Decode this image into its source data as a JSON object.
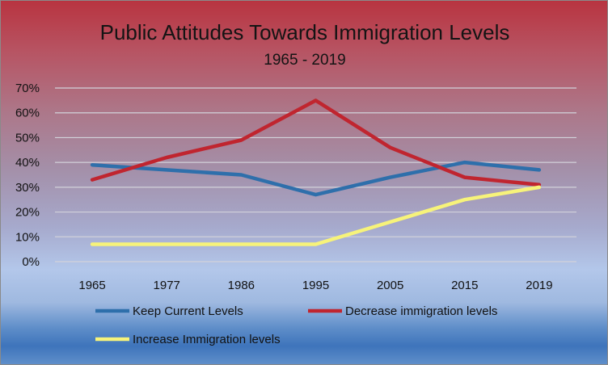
{
  "chart_data": {
    "type": "line",
    "title": "Public Attitudes Towards Immigration Levels",
    "subtitle": "1965 - 2019",
    "xlabel": "",
    "ylabel": "",
    "categories": [
      "1965",
      "1977",
      "1986",
      "1995",
      "2005",
      "2015",
      "2019"
    ],
    "y_ticks": [
      "0%",
      "10%",
      "20%",
      "30%",
      "40%",
      "50%",
      "60%",
      "70%"
    ],
    "ylim": [
      0,
      70
    ],
    "grid": true,
    "legend_position": "bottom",
    "series": [
      {
        "name": "Keep Current Levels",
        "color": "#2e6fab",
        "values": [
          39,
          37,
          35,
          27,
          34,
          40,
          37
        ]
      },
      {
        "name": "Decrease immigration levels",
        "color": "#c0252f",
        "values": [
          33,
          42,
          49,
          65,
          46,
          34,
          31
        ]
      },
      {
        "name": "Increase Immigration levels",
        "color": "#f7f37a",
        "values": [
          7,
          7,
          7,
          7,
          16,
          25,
          30
        ]
      }
    ]
  }
}
